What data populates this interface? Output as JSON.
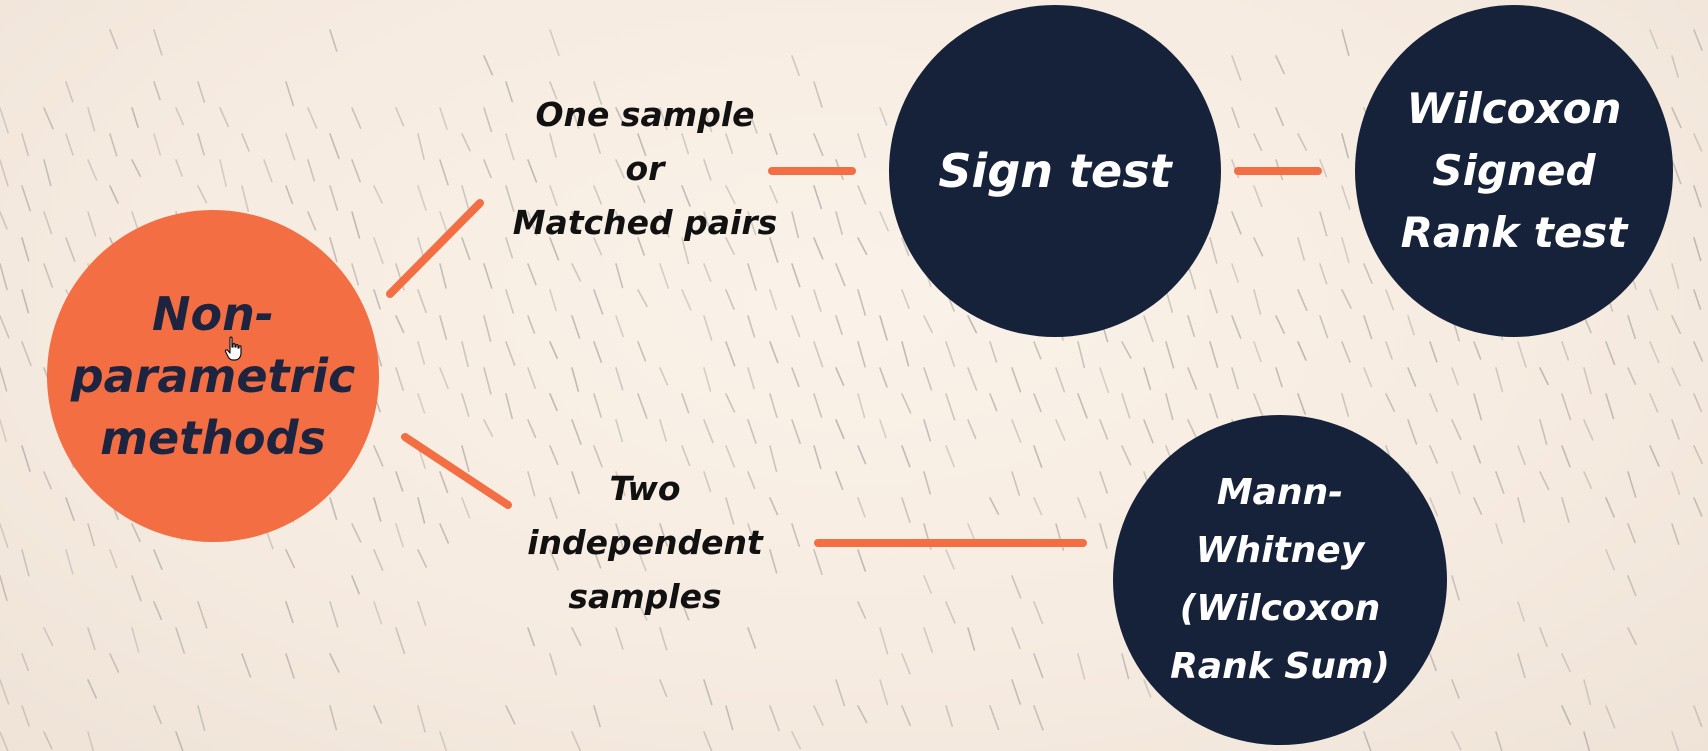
{
  "diagram": {
    "root": {
      "label": "Non-\nparametric\nmethods"
    },
    "branches": [
      {
        "condition": "One sample\nor\nMatched pairs",
        "tests": [
          "Sign test",
          "Wilcoxon\nSigned\nRank test"
        ]
      },
      {
        "condition": "Two\nindependent\nsamples",
        "tests": [
          "Mann-\nWhitney\n(Wilcoxon\nRank Sum)"
        ]
      }
    ]
  },
  "colors": {
    "accent": "#f36e43",
    "node_dark": "#16213a",
    "background": "#f8eee4",
    "hatch": "#b9b4ae"
  },
  "icons": {
    "pointer": "hand-pointer-icon"
  }
}
